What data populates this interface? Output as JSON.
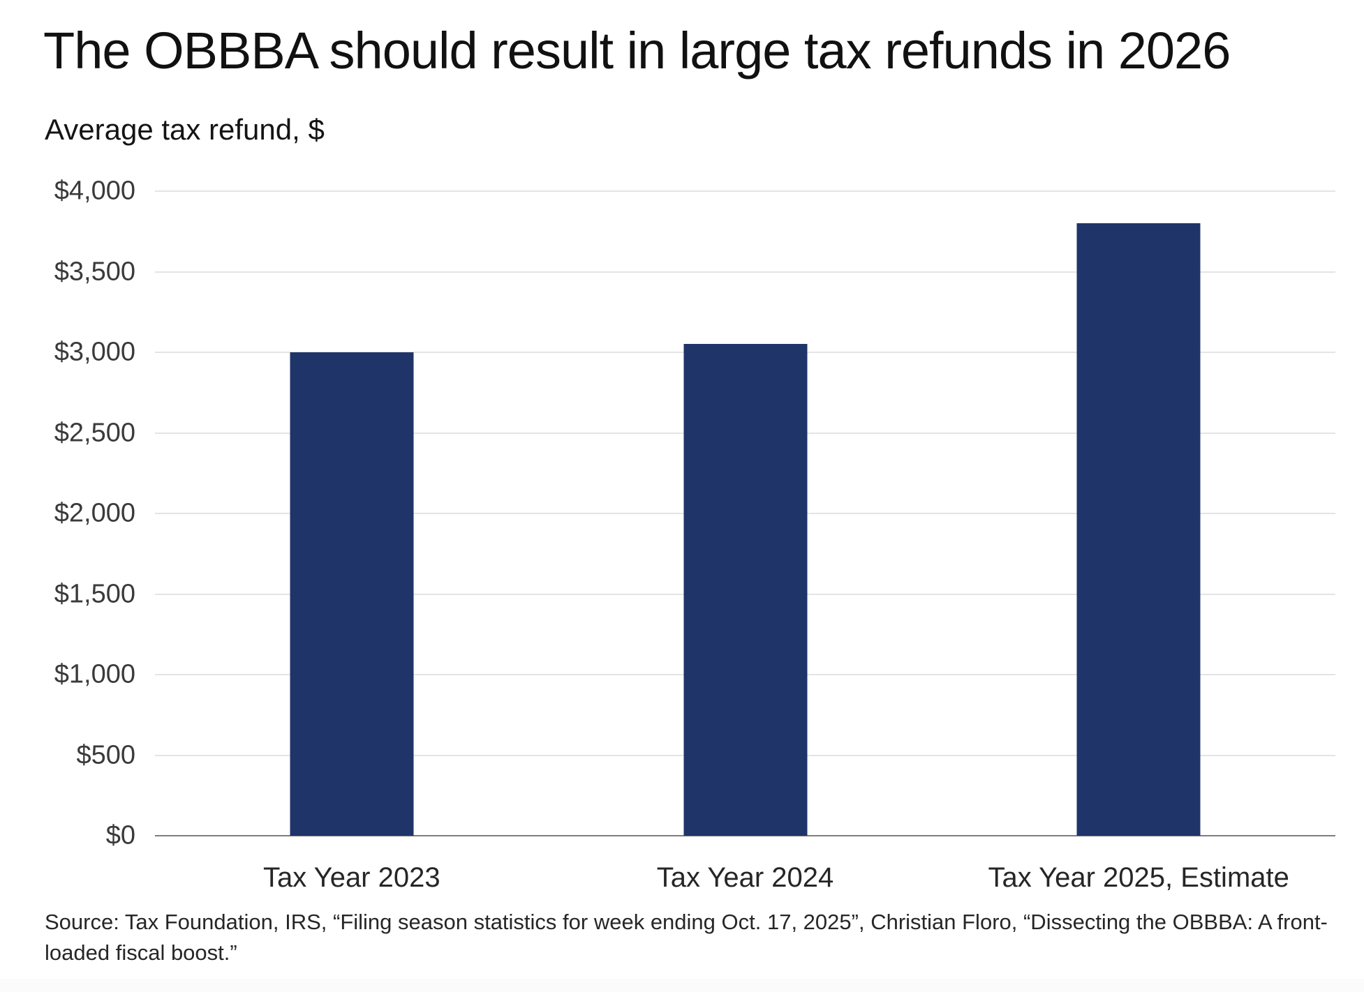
{
  "chart_data": {
    "type": "bar",
    "title": "The OBBBA should result in large tax refunds in 2026",
    "subtitle": "Average tax refund, $",
    "ylabel": "Average tax refund, $",
    "xlabel": "",
    "categories": [
      "Tax Year 2023",
      "Tax Year 2024",
      "Tax Year 2025, Estimate"
    ],
    "values": [
      3000,
      3050,
      3800
    ],
    "ylim": [
      0,
      4000
    ],
    "yticks": [
      {
        "value": 0,
        "label": "$0"
      },
      {
        "value": 500,
        "label": "$500"
      },
      {
        "value": 1000,
        "label": "$1,000"
      },
      {
        "value": 1500,
        "label": "$1,500"
      },
      {
        "value": 2000,
        "label": "$2,000"
      },
      {
        "value": 2500,
        "label": "$2,500"
      },
      {
        "value": 3000,
        "label": "$3,000"
      },
      {
        "value": 3500,
        "label": "$3,500"
      },
      {
        "value": 4000,
        "label": "$4,000"
      }
    ],
    "grid": true,
    "legend": "none",
    "bar_color": "#1f3468",
    "gridline_color": "#e4e4e4",
    "baseline_color": "#7d7d7d"
  },
  "footer": {
    "source": "Source: Tax Foundation, IRS, “Filing season statistics for week ending Oct. 17, 2025”, Christian Floro, “Dissecting the OBBBA: A front-loaded fiscal boost.”"
  }
}
